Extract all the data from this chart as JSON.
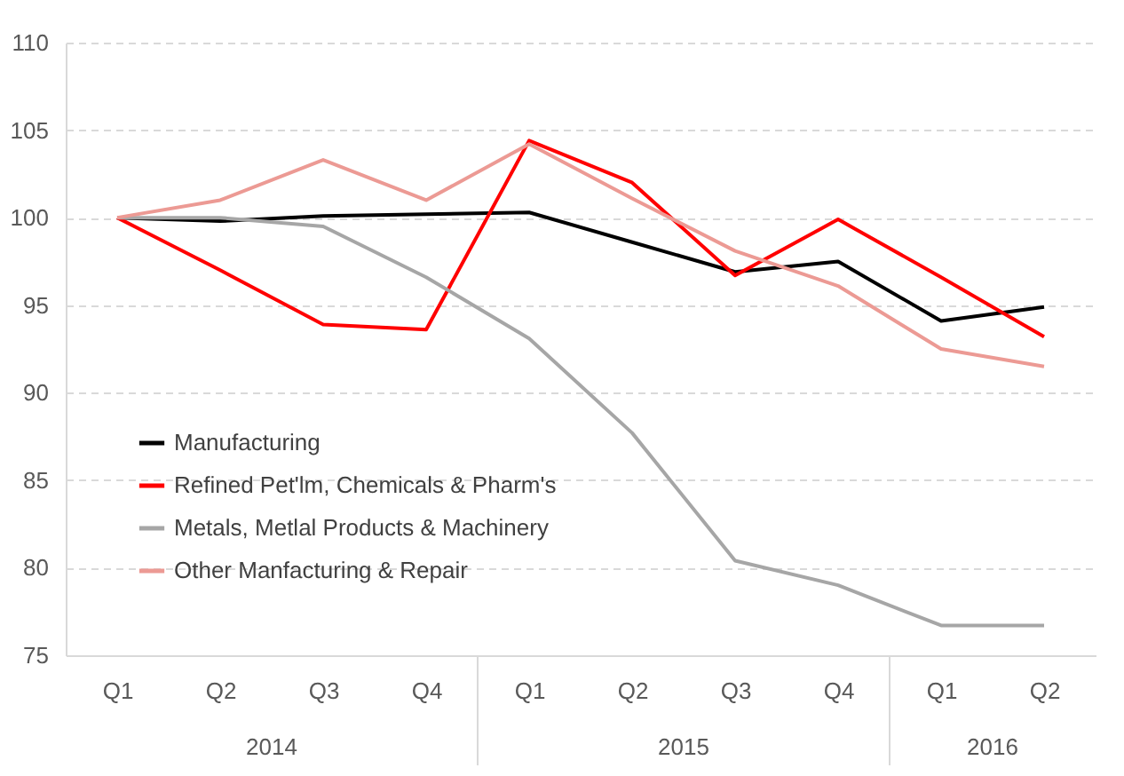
{
  "chart_data": {
    "type": "line",
    "categories": [
      "Q1",
      "Q2",
      "Q3",
      "Q4",
      "Q1",
      "Q2",
      "Q3",
      "Q4",
      "Q1",
      "Q2"
    ],
    "series": [
      {
        "name": "Manufacturing",
        "color": "#000000",
        "values": [
          100,
          99.8,
          100.1,
          100.2,
          100.3,
          98.6,
          96.9,
          97.5,
          94.1,
          94.9
        ]
      },
      {
        "name": "Refined Pet'lm, Chemicals & Pharm's",
        "color": "#ff0000",
        "values": [
          100,
          97.0,
          93.9,
          93.6,
          104.4,
          102.0,
          96.7,
          99.9,
          96.6,
          93.2
        ]
      },
      {
        "name": "Metals, Metlal Products & Machinery",
        "color": "#a6a6a6",
        "values": [
          100,
          100.0,
          99.5,
          96.6,
          93.1,
          87.7,
          80.4,
          79.0,
          76.7,
          76.7
        ]
      },
      {
        "name": "Other Manfacturing & Repair",
        "color": "#ec9a94",
        "values": [
          100,
          101.0,
          103.3,
          101.0,
          104.2,
          101.1,
          98.1,
          96.1,
          92.5,
          91.5
        ]
      }
    ],
    "ylim": [
      75,
      110
    ],
    "yticks": [
      75,
      80,
      85,
      90,
      95,
      100,
      105,
      110
    ],
    "grid": "y",
    "legend": "bottom left",
    "line_style": "solid",
    "marker": "none",
    "annotations": [
      "2014",
      "2015",
      "2016"
    ]
  }
}
